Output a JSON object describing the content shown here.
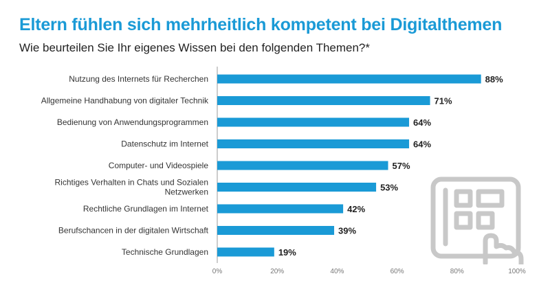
{
  "title": "Eltern fühlen sich mehrheitlich kompetent bei Digitalthemen",
  "subtitle": "Wie beurteilen Sie Ihr eigenes Wissen bei den folgenden Themen?*",
  "colors": {
    "bar": "#1a9ad6",
    "title": "#1a9ad6",
    "axis": "#999999",
    "watermark": "#c8c8c8"
  },
  "watermark_icon": "tablet-touch-icon",
  "chart_data": {
    "type": "bar",
    "orientation": "horizontal",
    "title": "Eltern fühlen sich mehrheitlich kompetent bei Digitalthemen",
    "subtitle": "Wie beurteilen Sie Ihr eigenes Wissen bei den folgenden Themen?*",
    "categories": [
      [
        "Nutzung des Internets für Recherchen"
      ],
      [
        "Allgemeine Handhabung von digitaler Technik"
      ],
      [
        "Bedienung von Anwendungsprogrammen"
      ],
      [
        "Datenschutz im Internet"
      ],
      [
        "Computer- und Videospiele"
      ],
      [
        "Richtiges Verhalten in Chats und Sozialen",
        "Netzwerken"
      ],
      [
        "Rechtliche Grundlagen im Internet"
      ],
      [
        "Berufschancen in der digitalen Wirtschaft"
      ],
      [
        "Technische Grundlagen"
      ]
    ],
    "values": [
      88,
      71,
      64,
      64,
      57,
      53,
      42,
      39,
      19
    ],
    "value_labels": [
      "88%",
      "71%",
      "64%",
      "64%",
      "57%",
      "53%",
      "42%",
      "39%",
      "19%"
    ],
    "xlim": [
      0,
      100
    ],
    "x_ticks": [
      0,
      20,
      40,
      60,
      80,
      100
    ],
    "x_tick_labels": [
      "0%",
      "20%",
      "40%",
      "60%",
      "80%",
      "100%"
    ],
    "xlabel": "",
    "ylabel": "",
    "grid": false
  }
}
